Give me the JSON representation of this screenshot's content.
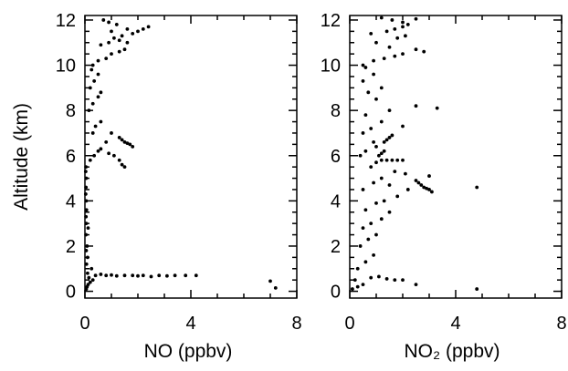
{
  "chart_data": [
    {
      "type": "scatter",
      "xlabel": "NO (ppbv)",
      "ylabel": "Altitude (km)",
      "xlim": [
        0,
        8
      ],
      "ylim": [
        -0.3,
        12.2
      ],
      "xticks": [
        "0",
        "4",
        "8"
      ],
      "yticks": [
        "0",
        "2",
        "4",
        "6",
        "8",
        "10",
        "12"
      ],
      "grid": false,
      "series": [
        {
          "marker_color": "#000000",
          "points": [
            [
              0.05,
              0.1
            ],
            [
              0.08,
              0.2
            ],
            [
              0.12,
              0.3
            ],
            [
              0.2,
              0.4
            ],
            [
              0.3,
              0.5
            ],
            [
              0.15,
              0.6
            ],
            [
              0.4,
              0.7
            ],
            [
              0.1,
              0.8
            ],
            [
              0.25,
              1.0
            ],
            [
              0.06,
              1.2
            ],
            [
              0.1,
              1.5
            ],
            [
              0.05,
              1.8
            ],
            [
              0.08,
              2.0
            ],
            [
              0.04,
              2.5
            ],
            [
              0.12,
              2.8
            ],
            [
              0.05,
              3.0
            ],
            [
              0.04,
              3.3
            ],
            [
              0.06,
              3.6
            ],
            [
              0.05,
              4.0
            ],
            [
              0.03,
              4.3
            ],
            [
              0.04,
              4.6
            ],
            [
              0.05,
              5.0
            ],
            [
              0.03,
              5.3
            ],
            [
              0.04,
              5.5
            ],
            [
              0.6,
              0.75
            ],
            [
              0.8,
              0.7
            ],
            [
              1.0,
              0.72
            ],
            [
              1.2,
              0.68
            ],
            [
              1.5,
              0.7
            ],
            [
              1.8,
              0.7
            ],
            [
              2.0,
              0.68
            ],
            [
              2.2,
              0.7
            ],
            [
              2.5,
              0.65
            ],
            [
              2.8,
              0.7
            ],
            [
              3.1,
              0.68
            ],
            [
              3.4,
              0.7
            ],
            [
              3.8,
              0.7
            ],
            [
              4.2,
              0.7
            ],
            [
              7.0,
              0.45
            ],
            [
              7.2,
              0.15
            ],
            [
              0.2,
              5.8
            ],
            [
              0.35,
              6.0
            ],
            [
              0.5,
              6.2
            ],
            [
              0.6,
              6.3
            ],
            [
              0.9,
              6.1
            ],
            [
              1.1,
              6.0
            ],
            [
              1.3,
              5.8
            ],
            [
              1.4,
              5.6
            ],
            [
              1.5,
              5.5
            ],
            [
              1.3,
              6.8
            ],
            [
              1.4,
              6.7
            ],
            [
              1.5,
              6.6
            ],
            [
              1.6,
              6.55
            ],
            [
              1.7,
              6.5
            ],
            [
              1.8,
              6.4
            ],
            [
              0.8,
              6.6
            ],
            [
              1.0,
              7.0
            ],
            [
              0.6,
              7.5
            ],
            [
              0.4,
              7.3
            ],
            [
              0.3,
              7.0
            ],
            [
              0.15,
              8.0
            ],
            [
              0.3,
              8.3
            ],
            [
              0.5,
              8.6
            ],
            [
              0.6,
              8.8
            ],
            [
              0.2,
              9.0
            ],
            [
              0.35,
              9.3
            ],
            [
              0.5,
              9.6
            ],
            [
              0.25,
              9.8
            ],
            [
              0.3,
              10.0
            ],
            [
              0.5,
              10.2
            ],
            [
              0.8,
              10.3
            ],
            [
              1.0,
              10.5
            ],
            [
              1.3,
              10.6
            ],
            [
              1.5,
              10.7
            ],
            [
              0.6,
              10.9
            ],
            [
              0.9,
              11.0
            ],
            [
              1.1,
              11.2
            ],
            [
              1.4,
              11.3
            ],
            [
              1.8,
              11.4
            ],
            [
              2.0,
              11.5
            ],
            [
              2.2,
              11.6
            ],
            [
              2.4,
              11.7
            ],
            [
              1.6,
              11.6
            ],
            [
              1.2,
              11.8
            ],
            [
              0.9,
              11.9
            ],
            [
              0.7,
              12.0
            ],
            [
              1.0,
              11.5
            ],
            [
              1.3,
              11.1
            ],
            [
              1.6,
              11.0
            ]
          ]
        }
      ]
    },
    {
      "type": "scatter",
      "xlabel": "NO₂ (ppbv)",
      "ylabel": "",
      "xlim": [
        0,
        8
      ],
      "ylim": [
        -0.3,
        12.2
      ],
      "xticks": [
        "0",
        "4",
        "8"
      ],
      "yticks": [
        "0",
        "2",
        "4",
        "6",
        "8",
        "10",
        "12"
      ],
      "grid": false,
      "series": [
        {
          "marker_color": "#000000",
          "points": [
            [
              0.1,
              0.1
            ],
            [
              0.3,
              0.2
            ],
            [
              0.5,
              0.3
            ],
            [
              0.2,
              0.5
            ],
            [
              0.8,
              0.6
            ],
            [
              1.1,
              0.65
            ],
            [
              1.4,
              0.55
            ],
            [
              1.7,
              0.5
            ],
            [
              2.0,
              0.5
            ],
            [
              2.5,
              0.3
            ],
            [
              4.8,
              0.1
            ],
            [
              0.3,
              1.0
            ],
            [
              0.6,
              1.3
            ],
            [
              0.9,
              1.6
            ],
            [
              0.4,
              2.0
            ],
            [
              0.7,
              2.3
            ],
            [
              1.0,
              2.5
            ],
            [
              0.5,
              2.8
            ],
            [
              0.8,
              3.0
            ],
            [
              1.2,
              3.2
            ],
            [
              1.5,
              3.5
            ],
            [
              0.6,
              3.6
            ],
            [
              1.0,
              3.9
            ],
            [
              1.3,
              4.0
            ],
            [
              1.8,
              4.2
            ],
            [
              2.2,
              4.5
            ],
            [
              1.5,
              4.7
            ],
            [
              0.9,
              4.8
            ],
            [
              0.5,
              4.5
            ],
            [
              2.5,
              4.9
            ],
            [
              2.6,
              4.8
            ],
            [
              2.7,
              4.7
            ],
            [
              2.8,
              4.6
            ],
            [
              2.9,
              4.55
            ],
            [
              3.0,
              4.5
            ],
            [
              3.1,
              4.4
            ],
            [
              4.8,
              4.6
            ],
            [
              3.0,
              5.1
            ],
            [
              2.1,
              5.2
            ],
            [
              1.7,
              5.3
            ],
            [
              1.2,
              5.0
            ],
            [
              0.8,
              5.5
            ],
            [
              1.0,
              5.7
            ],
            [
              1.2,
              5.8
            ],
            [
              1.4,
              5.8
            ],
            [
              1.6,
              5.8
            ],
            [
              1.8,
              5.8
            ],
            [
              2.0,
              5.8
            ],
            [
              1.1,
              6.0
            ],
            [
              1.2,
              6.1
            ],
            [
              1.3,
              6.2
            ],
            [
              1.0,
              6.4
            ],
            [
              0.9,
              6.6
            ],
            [
              1.3,
              6.6
            ],
            [
              1.4,
              6.7
            ],
            [
              1.5,
              6.8
            ],
            [
              1.6,
              6.9
            ],
            [
              0.6,
              6.2
            ],
            [
              0.4,
              6.0
            ],
            [
              0.5,
              7.0
            ],
            [
              0.8,
              7.2
            ],
            [
              1.2,
              7.5
            ],
            [
              2.0,
              7.3
            ],
            [
              0.6,
              7.8
            ],
            [
              1.5,
              8.0
            ],
            [
              2.5,
              8.2
            ],
            [
              3.3,
              8.1
            ],
            [
              1.0,
              8.5
            ],
            [
              0.7,
              8.8
            ],
            [
              1.2,
              9.0
            ],
            [
              0.5,
              9.3
            ],
            [
              0.9,
              9.6
            ],
            [
              0.6,
              9.9
            ],
            [
              0.5,
              10.0
            ],
            [
              0.9,
              10.2
            ],
            [
              1.3,
              10.3
            ],
            [
              1.7,
              10.4
            ],
            [
              2.0,
              10.5
            ],
            [
              2.5,
              10.7
            ],
            [
              2.8,
              10.6
            ],
            [
              1.5,
              10.8
            ],
            [
              1.0,
              11.0
            ],
            [
              1.8,
              11.2
            ],
            [
              2.1,
              11.3
            ],
            [
              1.4,
              11.5
            ],
            [
              1.7,
              11.6
            ],
            [
              2.0,
              11.7
            ],
            [
              2.2,
              11.8
            ],
            [
              2.0,
              11.9
            ],
            [
              1.6,
              12.0
            ],
            [
              2.5,
              12.05
            ],
            [
              1.2,
              12.1
            ],
            [
              0.8,
              11.4
            ]
          ]
        }
      ]
    }
  ]
}
